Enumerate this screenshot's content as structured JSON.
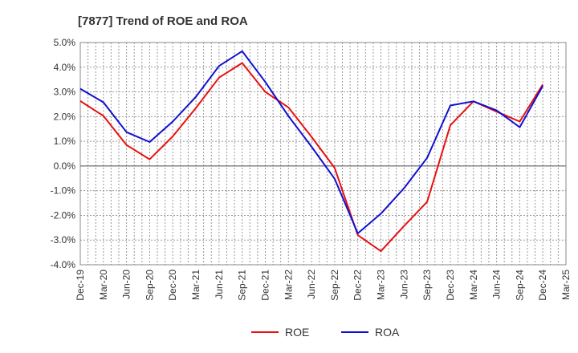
{
  "chart_data": {
    "type": "line",
    "title": "[7877]  Trend of ROE and ROA",
    "xlabel": "",
    "ylabel": "",
    "ylim": [
      -4.0,
      5.0
    ],
    "y_ticks": [
      "5.0%",
      "4.0%",
      "3.0%",
      "2.0%",
      "1.0%",
      "0.0%",
      "-1.0%",
      "-2.0%",
      "-3.0%",
      "-4.0%"
    ],
    "y_tick_values": [
      5,
      4,
      3,
      2,
      1,
      0,
      -1,
      -2,
      -3,
      -4
    ],
    "categories": [
      "Dec-19",
      "Mar-20",
      "Jun-20",
      "Sep-20",
      "Dec-20",
      "Mar-21",
      "Jun-21",
      "Sep-21",
      "Dec-21",
      "Mar-22",
      "Jun-22",
      "Sep-22",
      "Dec-22",
      "Mar-23",
      "Jun-23",
      "Sep-23",
      "Dec-23",
      "Mar-24",
      "Jun-24",
      "Sep-24",
      "Dec-24",
      "Mar-25"
    ],
    "grid": true,
    "legend_position": "bottom",
    "series": [
      {
        "name": "ROE",
        "color": "#e81010",
        "values": [
          2.63,
          2.03,
          0.85,
          0.27,
          1.2,
          2.35,
          3.58,
          4.17,
          3.0,
          2.37,
          1.18,
          -0.08,
          -2.8,
          -3.45,
          -2.43,
          -1.45,
          1.65,
          2.62,
          2.2,
          1.8,
          3.3,
          null
        ]
      },
      {
        "name": "ROA",
        "color": "#1010d0",
        "values": [
          3.13,
          2.58,
          1.37,
          0.97,
          1.8,
          2.8,
          4.05,
          4.65,
          3.4,
          2.02,
          0.78,
          -0.52,
          -2.73,
          -1.93,
          -0.9,
          0.33,
          2.45,
          2.62,
          2.25,
          1.57,
          3.25,
          null
        ]
      }
    ]
  }
}
